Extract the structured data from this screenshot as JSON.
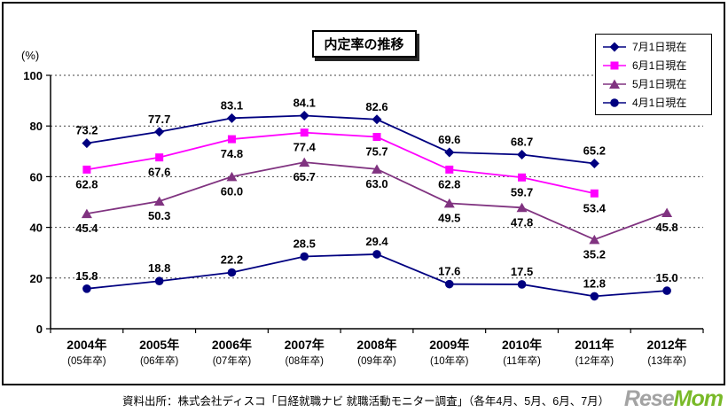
{
  "title": "内定率の推移",
  "y_axis_unit": "(%)",
  "footer": "資料出所：株式会社ディスコ「日経就職ナビ 就職活動モニター調査」（各年4月、5月、6月、7月）",
  "watermark": {
    "gray": "Rese",
    "green": "Mom"
  },
  "chart_data": {
    "type": "line",
    "title": "内定率の推移",
    "categories": [
      "2004年",
      "2005年",
      "2006年",
      "2007年",
      "2008年",
      "2009年",
      "2010年",
      "2011年",
      "2012年"
    ],
    "category_sub": [
      "(05年卒)",
      "(06年卒)",
      "(07年卒)",
      "(08年卒)",
      "(09年卒)",
      "(10年卒)",
      "(11年卒)",
      "(12年卒)",
      "(13年卒)"
    ],
    "ylabel": "(%)",
    "ylim": [
      0,
      100
    ],
    "yticks": [
      0,
      20,
      40,
      60,
      80,
      100
    ],
    "grid": true,
    "legend_position": "top-right",
    "series": [
      {
        "name": "7月1日現在",
        "marker": "diamond",
        "color": "#000080",
        "values": [
          73.2,
          77.7,
          83.1,
          84.1,
          82.6,
          69.6,
          68.7,
          65.2,
          null
        ],
        "label_position": "above"
      },
      {
        "name": "6月1日現在",
        "marker": "square",
        "color": "#FF00FF",
        "values": [
          62.8,
          67.6,
          74.8,
          77.4,
          75.7,
          62.8,
          59.7,
          53.4,
          null
        ],
        "label_position": "below"
      },
      {
        "name": "5月1日現在",
        "marker": "triangle",
        "color": "#803380",
        "values": [
          45.4,
          50.3,
          60.0,
          65.7,
          63.0,
          49.5,
          47.8,
          35.2,
          45.8
        ],
        "label_position": "below"
      },
      {
        "name": "4月1日現在",
        "marker": "circle",
        "color": "#000080",
        "values": [
          15.8,
          18.8,
          22.2,
          28.5,
          29.4,
          17.6,
          17.5,
          12.8,
          15.0
        ],
        "label_position": "above"
      }
    ]
  }
}
